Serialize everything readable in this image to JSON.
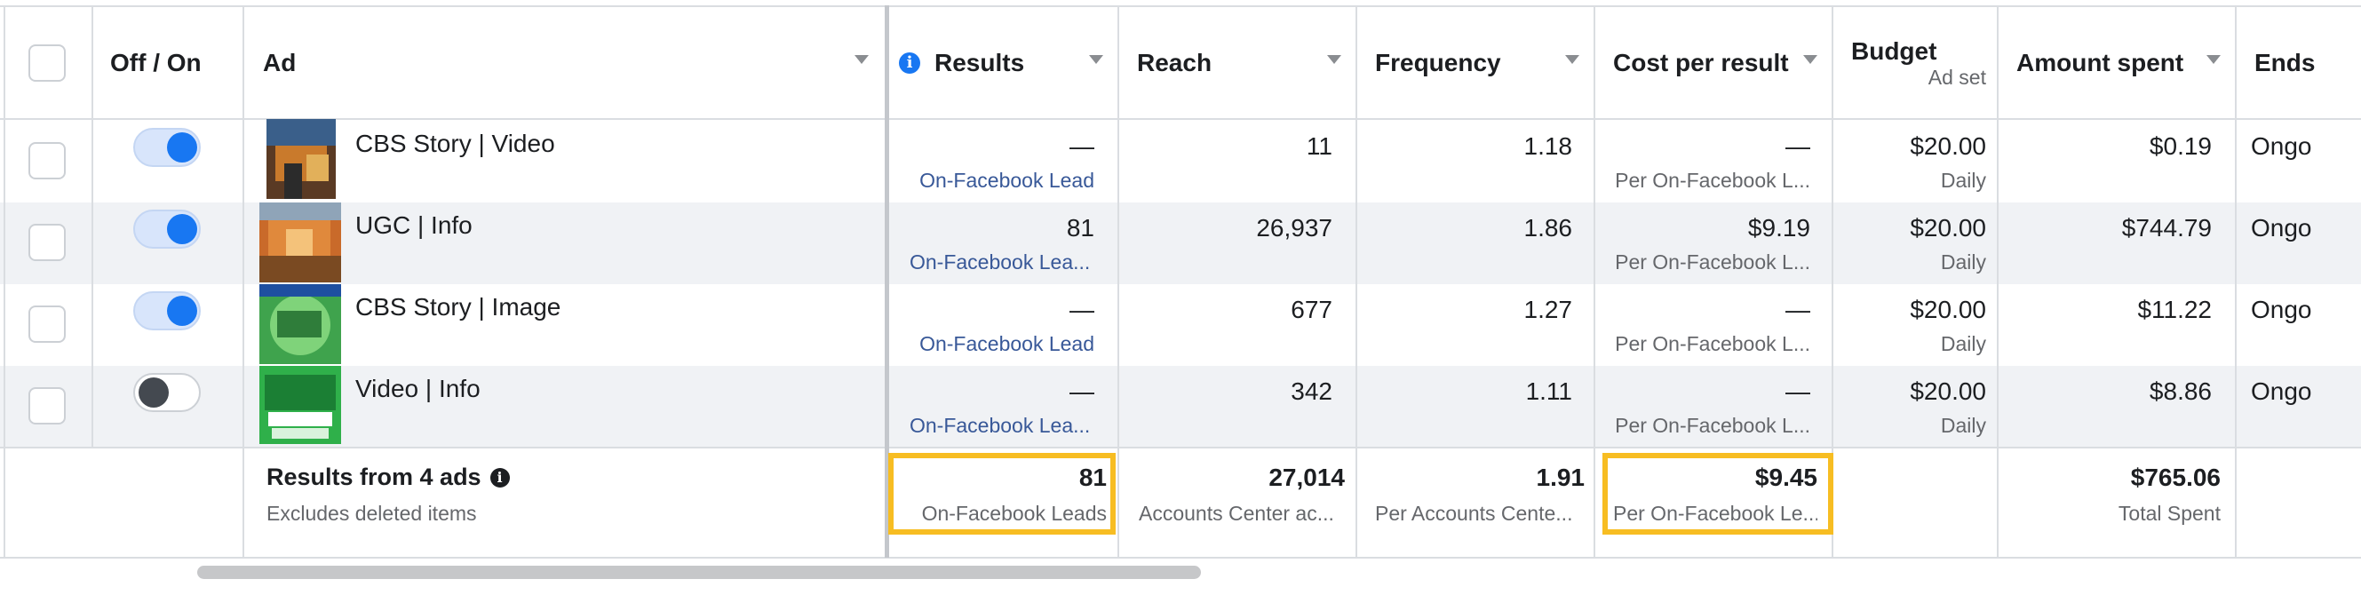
{
  "header": {
    "off_on": "Off / On",
    "ad": "Ad",
    "results": "Results",
    "reach": "Reach",
    "frequency": "Frequency",
    "cost_per_result": "Cost per result",
    "budget": "Budget",
    "budget_sub": "Ad set",
    "amount_spent": "Amount spent",
    "ends": "Ends"
  },
  "rows": [
    {
      "name": "CBS Story | Video",
      "on": true,
      "results": "—",
      "results_sub": "On-Facebook Lead",
      "reach": "11",
      "frequency": "1.18",
      "cpr": "—",
      "cpr_sub": "Per On-Facebook L...",
      "budget": "$20.00",
      "budget_sub": "Daily",
      "spent": "$0.19",
      "ends": "Ongo"
    },
    {
      "name": "UGC | Info",
      "on": true,
      "results": "81",
      "results_sub": "On-Facebook Lea...",
      "reach": "26,937",
      "frequency": "1.86",
      "cpr": "$9.19",
      "cpr_sub": "Per On-Facebook L...",
      "budget": "$20.00",
      "budget_sub": "Daily",
      "spent": "$744.79",
      "ends": "Ongo"
    },
    {
      "name": "CBS Story | Image",
      "on": true,
      "results": "—",
      "results_sub": "On-Facebook Lead",
      "reach": "677",
      "frequency": "1.27",
      "cpr": "—",
      "cpr_sub": "Per On-Facebook L...",
      "budget": "$20.00",
      "budget_sub": "Daily",
      "spent": "$11.22",
      "ends": "Ongo"
    },
    {
      "name": "Video | Info",
      "on": false,
      "results": "—",
      "results_sub": "On-Facebook Lea...",
      "reach": "342",
      "frequency": "1.11",
      "cpr": "—",
      "cpr_sub": "Per On-Facebook L...",
      "budget": "$20.00",
      "budget_sub": "Daily",
      "spent": "$8.86",
      "ends": "Ongo"
    }
  ],
  "summary": {
    "title": "Results from 4 ads",
    "subtitle": "Excludes deleted items",
    "results": "81",
    "results_sub": "On-Facebook Leads",
    "reach": "27,014",
    "reach_sub": "Accounts Center ac...",
    "frequency": "1.91",
    "frequency_sub": "Per Accounts Cente...",
    "cpr": "$9.45",
    "cpr_sub": "Per On-Facebook Le...",
    "spent": "$765.06",
    "spent_sub": "Total Spent"
  },
  "icons": {
    "info": "info-icon",
    "sort": "sort-down-icon"
  },
  "colors": {
    "accent": "#1877f2",
    "highlight": "#f7bd22",
    "link": "#385898"
  }
}
